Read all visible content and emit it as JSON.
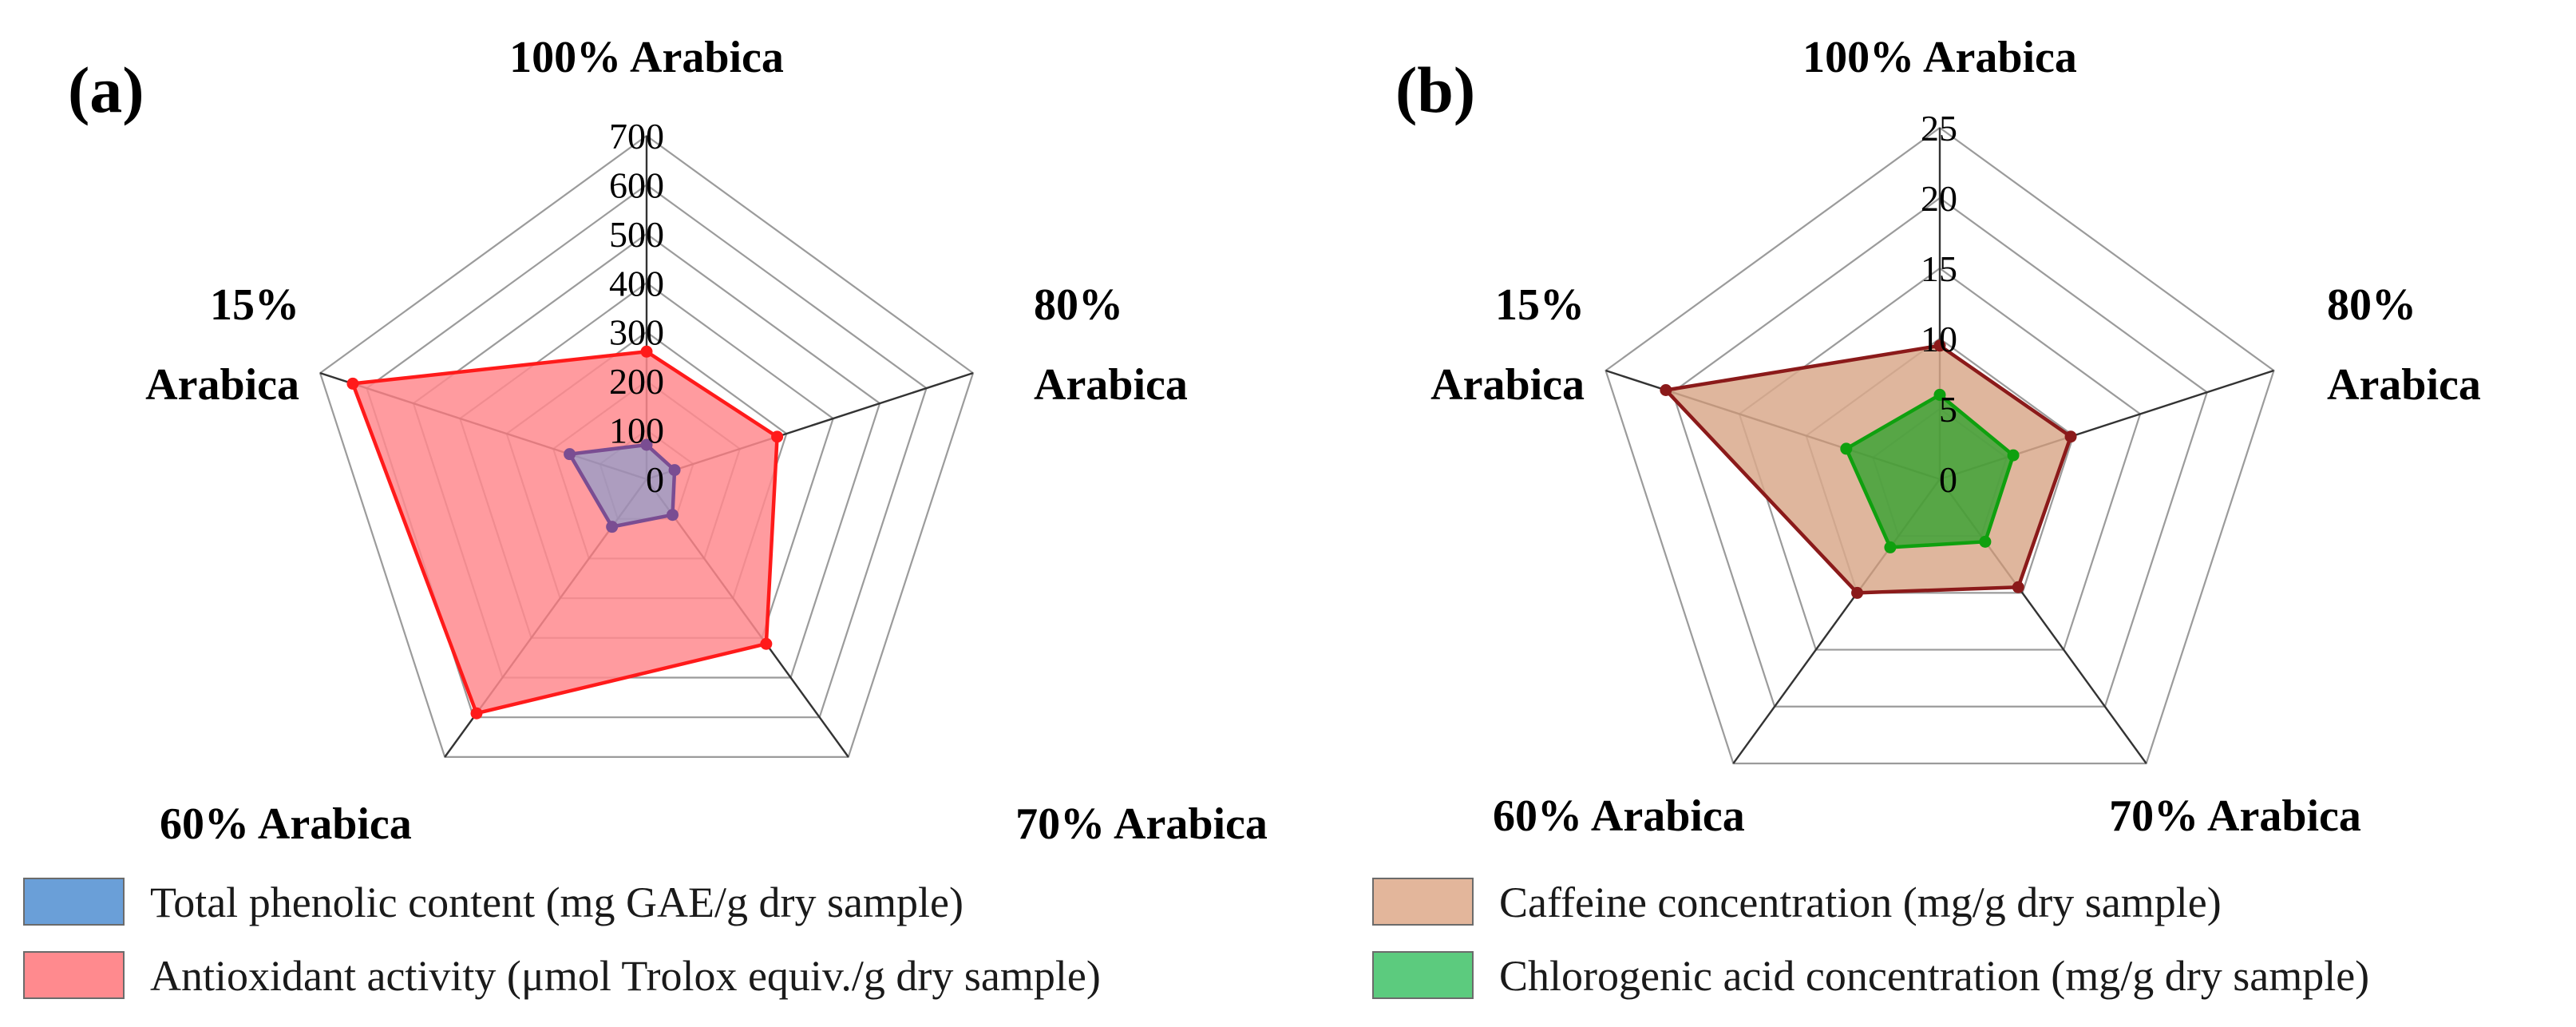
{
  "chart_data": [
    {
      "id": "a",
      "type": "radar",
      "panel_label": "(a)",
      "axes": [
        {
          "key": "100",
          "lines": [
            "100% Arabica"
          ]
        },
        {
          "key": "80",
          "lines": [
            "80%",
            "Arabica"
          ]
        },
        {
          "key": "70",
          "lines": [
            "70% Arabica"
          ]
        },
        {
          "key": "60",
          "lines": [
            "60% Arabica"
          ]
        },
        {
          "key": "15",
          "lines": [
            "15%",
            "Arabica"
          ]
        }
      ],
      "r_range": [
        0,
        700
      ],
      "ticks": [
        0,
        100,
        200,
        300,
        400,
        500,
        600,
        700
      ],
      "tick_labels": [
        "0",
        "100",
        "200",
        "300",
        "400",
        "500",
        "600",
        "700"
      ],
      "series": [
        {
          "name": "Antioxidant activity (µmol Trolox equiv./g dry sample)",
          "values": [
            260,
            280,
            415,
            590,
            630
          ],
          "fill": "#ff8a8e",
          "stroke": "#ff1a1a",
          "fill_opacity": 0.85
        },
        {
          "name": "Total phenolic content (mg GAE/g dry sample)",
          "values": [
            70,
            60,
            90,
            120,
            165
          ],
          "fill": "#6a9fd8",
          "stroke": "#7a4d92",
          "fill_opacity": 0.55
        }
      ],
      "legend": [
        {
          "label": "Total phenolic content (mg GAE/g dry sample)",
          "swatch": "#6a9fd8"
        },
        {
          "label": "Antioxidant activity (μmol Trolox equiv./g dry sample)",
          "swatch": "#ff8a8e"
        }
      ]
    },
    {
      "id": "b",
      "type": "radar",
      "panel_label": "(b)",
      "axes": [
        {
          "key": "100",
          "lines": [
            "100% Arabica"
          ]
        },
        {
          "key": "80",
          "lines": [
            "80%",
            "Arabica"
          ]
        },
        {
          "key": "70",
          "lines": [
            "70% Arabica"
          ]
        },
        {
          "key": "60",
          "lines": [
            "60% Arabica"
          ]
        },
        {
          "key": "15",
          "lines": [
            "15%",
            "Arabica"
          ]
        }
      ],
      "r_range": [
        0,
        25
      ],
      "ticks": [
        0,
        5,
        10,
        15,
        20,
        25
      ],
      "tick_labels": [
        "0",
        "5",
        "10",
        "15",
        "20",
        "25"
      ],
      "series": [
        {
          "name": "Caffeine concentration (mg/g dry sample)",
          "values": [
            9.5,
            9.8,
            9.5,
            10.0,
            20.5
          ],
          "fill": "#d9a98c",
          "stroke": "#8b1a1a",
          "fill_opacity": 0.85
        },
        {
          "name": "Chlorogenic acid concentration (mg/g dry sample)",
          "values": [
            6.0,
            5.5,
            5.5,
            6.0,
            7.0
          ],
          "fill": "#2aa02a",
          "stroke": "#0fa00f",
          "fill_opacity": 0.75
        }
      ],
      "legend": [
        {
          "label": "Caffeine concentration (mg/g dry sample)",
          "swatch": "#e3b69b"
        },
        {
          "label": "Chlorogenic acid concentration (mg/g dry sample)",
          "swatch": "#5ccb7e"
        }
      ]
    }
  ]
}
